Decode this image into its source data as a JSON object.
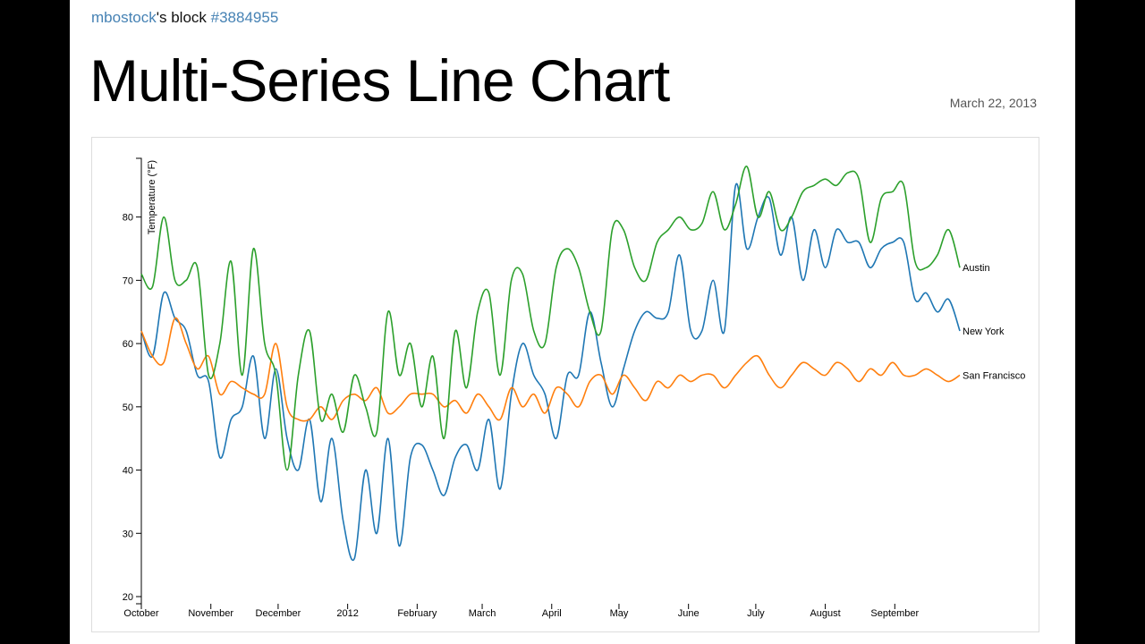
{
  "header": {
    "user": "mbostock",
    "mid": "'s block ",
    "gist": "#3884955"
  },
  "title": "Multi-Series Line Chart",
  "date": "March 22, 2013",
  "chart_data": {
    "type": "line",
    "title": "",
    "xlabel": "",
    "ylabel": "Temperature (°F)",
    "ylim": [
      20,
      89
    ],
    "xlim": [
      "2011-10-01",
      "2012-09-30"
    ],
    "grid": false,
    "legend": "inline labels at line ends (right)",
    "y_ticks": [
      "20",
      "30",
      "40",
      "50",
      "60",
      "70",
      "80"
    ],
    "x_ticks": [
      {
        "date": "2011-10-01",
        "label": "October"
      },
      {
        "date": "2011-11-01",
        "label": "November"
      },
      {
        "date": "2011-12-01",
        "label": "December"
      },
      {
        "date": "2012-01-01",
        "label": "2012"
      },
      {
        "date": "2012-02-01",
        "label": "February"
      },
      {
        "date": "2012-03-01",
        "label": "March"
      },
      {
        "date": "2012-04-01",
        "label": "April"
      },
      {
        "date": "2012-05-01",
        "label": "May"
      },
      {
        "date": "2012-06-01",
        "label": "June"
      },
      {
        "date": "2012-07-01",
        "label": "July"
      },
      {
        "date": "2012-08-01",
        "label": "August"
      },
      {
        "date": "2012-09-01",
        "label": "September"
      }
    ],
    "x": [
      "2011-10-01",
      "2011-10-06",
      "2011-10-11",
      "2011-10-16",
      "2011-10-21",
      "2011-10-26",
      "2011-10-31",
      "2011-11-05",
      "2011-11-10",
      "2011-11-15",
      "2011-11-20",
      "2011-11-25",
      "2011-11-30",
      "2011-12-05",
      "2011-12-10",
      "2011-12-15",
      "2011-12-20",
      "2011-12-25",
      "2011-12-30",
      "2012-01-04",
      "2012-01-09",
      "2012-01-14",
      "2012-01-19",
      "2012-01-24",
      "2012-01-29",
      "2012-02-03",
      "2012-02-08",
      "2012-02-13",
      "2012-02-18",
      "2012-02-23",
      "2012-02-28",
      "2012-03-04",
      "2012-03-09",
      "2012-03-14",
      "2012-03-19",
      "2012-03-24",
      "2012-03-29",
      "2012-04-03",
      "2012-04-08",
      "2012-04-13",
      "2012-04-18",
      "2012-04-23",
      "2012-04-28",
      "2012-05-03",
      "2012-05-08",
      "2012-05-13",
      "2012-05-18",
      "2012-05-23",
      "2012-05-28",
      "2012-06-02",
      "2012-06-07",
      "2012-06-12",
      "2012-06-17",
      "2012-06-22",
      "2012-06-27",
      "2012-07-02",
      "2012-07-07",
      "2012-07-12",
      "2012-07-17",
      "2012-07-22",
      "2012-07-27",
      "2012-08-01",
      "2012-08-06",
      "2012-08-11",
      "2012-08-16",
      "2012-08-21",
      "2012-08-26",
      "2012-08-31",
      "2012-09-05",
      "2012-09-10",
      "2012-09-15",
      "2012-09-20",
      "2012-09-25",
      "2012-09-30"
    ],
    "series": [
      {
        "name": "New York",
        "color": "#1f77b4",
        "values": [
          62,
          58,
          68,
          64,
          62,
          55,
          54,
          42,
          48,
          50,
          58,
          45,
          56,
          45,
          40,
          48,
          35,
          45,
          32,
          26,
          40,
          30,
          45,
          28,
          42,
          44,
          40,
          36,
          42,
          44,
          40,
          48,
          37,
          52,
          60,
          55,
          52,
          45,
          55,
          55,
          65,
          57,
          50,
          56,
          62,
          65,
          64,
          65,
          74,
          62,
          62,
          70,
          62,
          85,
          75,
          80,
          83,
          74,
          80,
          70,
          78,
          72,
          78,
          76,
          76,
          72,
          75,
          76,
          76,
          67,
          68,
          65,
          67,
          62
        ]
      },
      {
        "name": "San Francisco",
        "color": "#ff7f0e",
        "values": [
          62,
          58,
          57,
          64,
          60,
          56,
          58,
          52,
          54,
          53,
          52,
          52,
          60,
          50,
          48,
          48,
          50,
          48,
          51,
          52,
          51,
          53,
          49,
          50,
          52,
          52,
          52,
          50,
          51,
          49,
          52,
          50,
          48,
          53,
          50,
          52,
          49,
          53,
          52,
          50,
          54,
          55,
          52,
          55,
          53,
          51,
          54,
          53,
          55,
          54,
          55,
          55,
          53,
          55,
          57,
          58,
          55,
          53,
          55,
          57,
          56,
          55,
          57,
          56,
          54,
          56,
          55,
          57,
          55,
          55,
          56,
          55,
          54,
          55
        ]
      },
      {
        "name": "Austin",
        "color": "#2ca02c",
        "values": [
          71,
          69,
          80,
          70,
          70,
          72,
          55,
          60,
          73,
          55,
          75,
          60,
          55,
          40,
          55,
          62,
          48,
          52,
          46,
          55,
          50,
          46,
          65,
          55,
          60,
          50,
          58,
          45,
          62,
          53,
          65,
          68,
          55,
          70,
          71,
          62,
          60,
          72,
          75,
          72,
          65,
          62,
          78,
          78,
          72,
          70,
          76,
          78,
          80,
          78,
          79,
          84,
          78,
          82,
          88,
          80,
          84,
          78,
          80,
          84,
          85,
          86,
          85,
          87,
          86,
          76,
          83,
          84,
          85,
          73,
          72,
          74,
          78,
          72
        ]
      }
    ]
  }
}
